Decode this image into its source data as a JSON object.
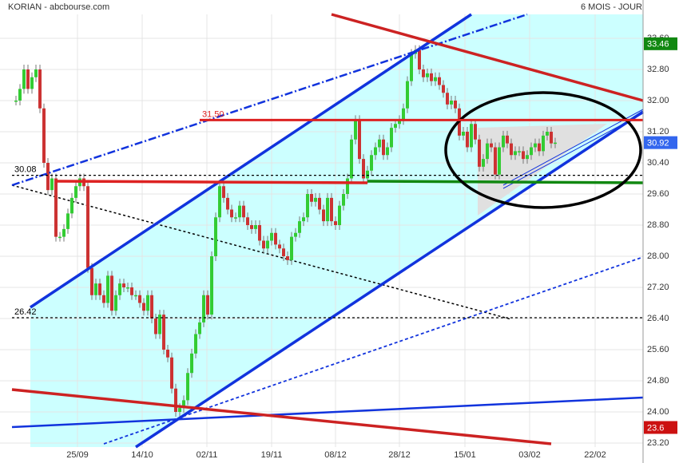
{
  "chart_data": {
    "type": "candlestick",
    "title": "KORIAN - abcbourse.com",
    "subtitle": "6 MOIS - JOUR",
    "values": [
      32.0,
      32.3,
      32.8,
      32.3,
      32.6,
      32.8,
      31.8,
      30.4,
      29.7,
      30.0,
      28.5,
      28.5,
      28.7,
      29.1,
      29.5,
      29.8,
      30.0,
      29.8,
      27.7,
      27.0,
      27.3,
      27.0,
      26.8,
      27.5,
      26.6,
      27.0,
      27.3,
      27.2,
      27.2,
      27.0,
      27.0,
      26.8,
      26.6,
      27.0,
      26.4,
      26.0,
      26.5,
      25.6,
      25.4,
      24.6,
      24.0,
      24.1,
      24.3,
      25.0,
      25.5,
      26.0,
      26.3,
      27.0,
      26.5,
      28.0,
      29.0,
      29.8,
      29.5,
      29.2,
      29.0,
      29.0,
      29.3,
      29.0,
      28.8,
      28.7,
      28.8,
      28.4,
      28.2,
      28.4,
      28.6,
      28.3,
      28.2,
      28.0,
      27.9,
      28.5,
      28.6,
      28.9,
      29.0,
      29.6,
      29.4,
      29.5,
      29.2,
      28.9,
      29.5,
      28.9,
      28.8,
      29.3,
      29.6,
      30.0,
      31.0,
      31.5,
      30.5,
      30.0,
      30.2,
      30.6,
      30.8,
      31.0,
      30.6,
      30.8,
      31.3,
      31.4,
      31.5,
      31.8,
      32.5,
      33.2,
      33.3,
      32.8,
      32.6,
      32.7,
      32.5,
      32.6,
      32.4,
      32.2,
      31.9,
      32.0,
      31.8,
      31.1,
      31.2,
      30.8,
      31.4,
      31.0,
      30.3,
      30.5,
      30.9,
      30.8,
      30.1,
      30.8,
      31.1,
      30.9,
      30.6,
      30.7,
      30.7,
      30.5,
      30.6,
      30.8,
      30.9,
      30.7,
      31.1,
      31.2,
      30.9,
      30.92
    ],
    "up_color": "#33cc33",
    "down_color": "#cc3333",
    "xlim": [
      0,
      157
    ],
    "xticks": [
      {
        "value": 15.4,
        "label": "25/09"
      },
      {
        "value": 31.6,
        "label": "14/10"
      },
      {
        "value": 47.8,
        "label": "02/11"
      },
      {
        "value": 64,
        "label": "19/11"
      },
      {
        "value": 80,
        "label": "08/12"
      },
      {
        "value": 96,
        "label": "28/12"
      },
      {
        "value": 112.4,
        "label": "15/01"
      },
      {
        "value": 128.6,
        "label": "03/02"
      },
      {
        "value": 145,
        "label": "22/02"
      }
    ],
    "ylim": [
      23.2,
      33.6
    ],
    "yticks": [
      {
        "value": 23.2,
        "label": "23.20"
      },
      {
        "value": 24,
        "label": "24.00"
      },
      {
        "value": 24.8,
        "label": "24.80"
      },
      {
        "value": 25.6,
        "label": "25.60"
      },
      {
        "value": 26.4,
        "label": "26.40"
      },
      {
        "value": 27.2,
        "label": "27.20"
      },
      {
        "value": 28,
        "label": "28.00"
      },
      {
        "value": 28.8,
        "label": "28.80"
      },
      {
        "value": 29.6,
        "label": "29.60"
      },
      {
        "value": 30.4,
        "label": "30.40"
      },
      {
        "value": 31.2,
        "label": "31.20"
      },
      {
        "value": 32,
        "label": "32.00"
      },
      {
        "value": 32.8,
        "label": "32.80"
      },
      {
        "value": 33.6,
        "label": "33.60"
      }
    ],
    "grid": true,
    "levels": [
      {
        "value": 31.5,
        "label": "31.50",
        "color": "#dd2222"
      },
      {
        "value": 30.08,
        "label": "30.08",
        "color": "#000000"
      },
      {
        "value": 26.42,
        "label": "26.42",
        "color": "#000000"
      }
    ],
    "price_tags": [
      {
        "value": 33.46,
        "color": "#118811"
      },
      {
        "value": 30.92,
        "color": "#3366ee"
      },
      {
        "value": 23.6,
        "color": "#cc1111"
      }
    ]
  }
}
